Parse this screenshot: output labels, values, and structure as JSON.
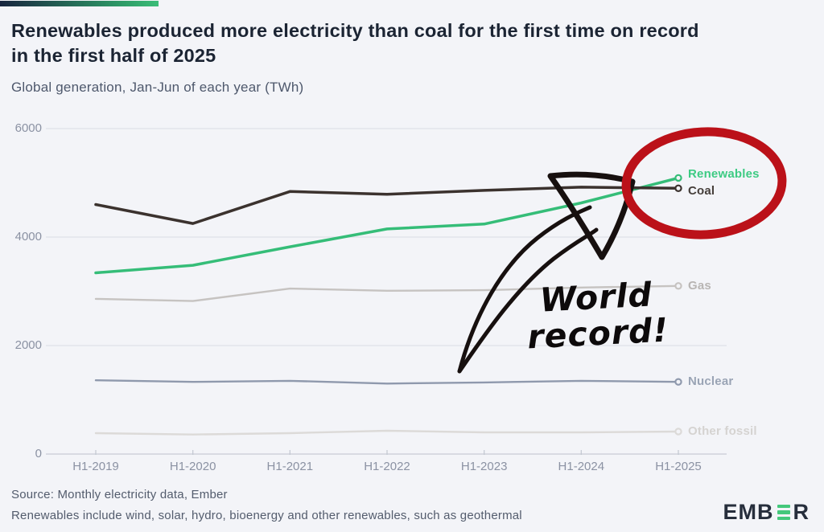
{
  "header": {
    "title_line1": "Renewables produced more electricity than coal for the first time on record",
    "title_line2": "in the first half of 2025",
    "subtitle": "Global generation, Jan-Jun of each year (TWh)"
  },
  "annotation": {
    "line1": "World",
    "line2": "record!"
  },
  "footer": {
    "source": "Source: Monthly electricity data, Ember",
    "note": "Renewables include wind, solar, hydro, bioenergy and other renewables, such as geothermal"
  },
  "logo": {
    "prefix": "EMB",
    "suffix": "R"
  },
  "colors": {
    "background": "#f3f4f8",
    "title_text": "#1b2433",
    "renewables_green": "#35bd78",
    "coal_dark": "#3b322e",
    "gas_gray": "#c6c3c1",
    "nuclear_slate": "#8f99ad",
    "other_fossil_light": "#dcdad8",
    "annotation_red": "#bb1119",
    "brand_gradient_start": "#18253f",
    "brand_gradient_end": "#3bbd78"
  },
  "chart_data": {
    "type": "line",
    "title": "Renewables produced more electricity than coal for the first time on record in the first half of 2025",
    "subtitle": "Global generation, Jan-Jun of each year (TWh)",
    "unit": "TWh",
    "xlabel": "",
    "ylabel": "TWh",
    "ylim": [
      0,
      6000
    ],
    "grid": "horizontal",
    "legend_position": "end-of-line-labels",
    "categories": [
      "H1-2019",
      "H1-2020",
      "H1-2021",
      "H1-2022",
      "H1-2023",
      "H1-2024",
      "H1-2025"
    ],
    "ytick_values": [
      0,
      2000,
      4000,
      6000
    ],
    "ytick_labels": [
      "0",
      "2000",
      "4000",
      "6000"
    ],
    "series": [
      {
        "name": "Renewables",
        "color": "#35bd78",
        "label_color": "#3dcb83",
        "values": [
          3340,
          3480,
          3820,
          4150,
          4240,
          4630,
          5090
        ]
      },
      {
        "name": "Coal",
        "color": "#3b322e",
        "label_color": "#453e3a",
        "values": [
          4600,
          4250,
          4840,
          4790,
          4860,
          4920,
          4900
        ]
      },
      {
        "name": "Gas",
        "color": "#c6c3c1",
        "label_color": "#b8b5b3",
        "values": [
          2860,
          2820,
          3050,
          3010,
          3020,
          3070,
          3100
        ]
      },
      {
        "name": "Nuclear",
        "color": "#8f99ad",
        "label_color": "#9aa4b5",
        "values": [
          1360,
          1330,
          1350,
          1300,
          1320,
          1350,
          1330
        ]
      },
      {
        "name": "Other fossil",
        "color": "#dcdad8",
        "label_color": "#d5d3d1",
        "values": [
          385,
          360,
          385,
          430,
          400,
          400,
          415
        ]
      }
    ],
    "annotations": [
      {
        "type": "circle",
        "text": "",
        "target": "Renewables/Coal H1-2025 endpoints"
      },
      {
        "type": "arrow-callout",
        "text": "World record!",
        "target": "Renewables overtaking Coal"
      }
    ]
  }
}
